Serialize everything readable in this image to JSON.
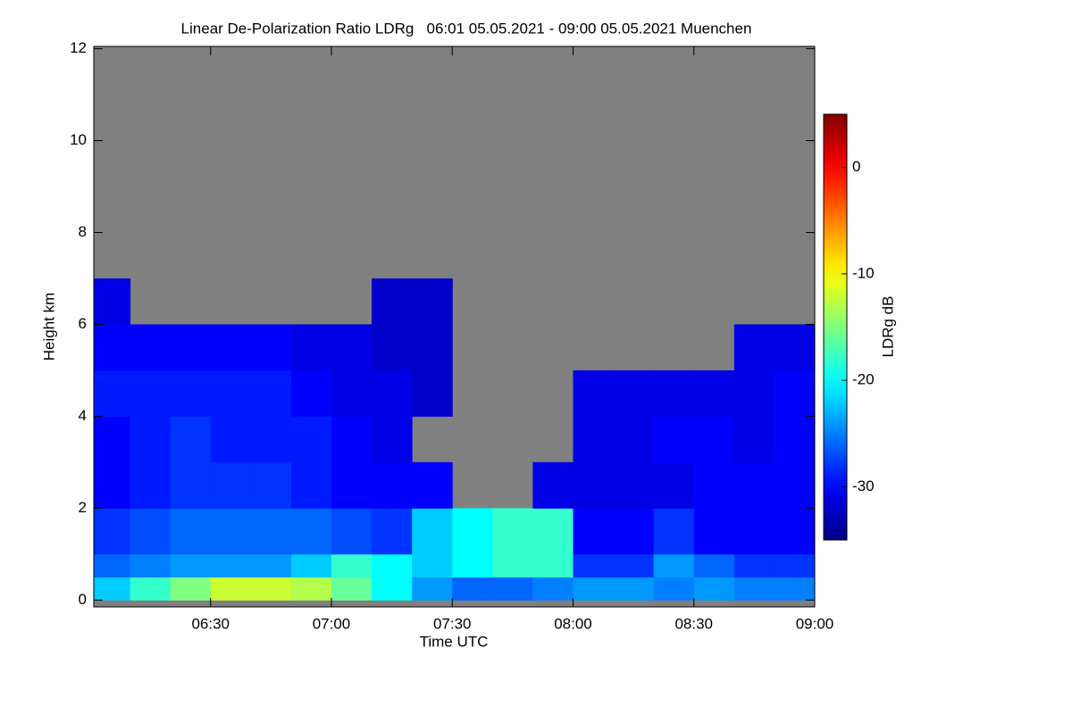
{
  "chart_data": {
    "type": "heatmap",
    "title": "Linear De-Polarization Ratio LDRg   06:01 05.05.2021 - 09:00 05.05.2021 Muenchen",
    "x_label": "Time UTC",
    "y_label": "Height km",
    "colorbar_label": "LDRg dB",
    "colormap": "jet",
    "nan_color": "#808080",
    "xlim": [
      1,
      180
    ],
    "xticks": [
      {
        "value": 30,
        "label": "06:30"
      },
      {
        "value": 60,
        "label": "07:00"
      },
      {
        "value": 90,
        "label": "07:30"
      },
      {
        "value": 120,
        "label": "08:00"
      },
      {
        "value": 150,
        "label": "08:30"
      },
      {
        "value": 180,
        "label": "09:00"
      }
    ],
    "ylim": [
      -0.15,
      12.05
    ],
    "yticks": [
      0,
      2,
      4,
      6,
      8,
      10,
      12
    ],
    "zlim": [
      -35,
      5
    ],
    "zticks": [
      0,
      -10,
      -20,
      -30
    ],
    "xbins": [
      1,
      10,
      20,
      30,
      40,
      50,
      60,
      70,
      80,
      90,
      100,
      110,
      120,
      130,
      140,
      150,
      160,
      170,
      180
    ],
    "ybins": [
      0,
      0.5,
      1,
      2,
      3,
      4,
      5,
      6,
      7,
      12
    ],
    "z": [
      [
        -22,
        -18,
        -15,
        -12,
        -12,
        -13,
        -16,
        -20,
        -24,
        -26,
        -26,
        -25,
        -24,
        -24,
        -25,
        -24,
        -25,
        -25
      ],
      [
        -26,
        -25,
        -24,
        -24,
        -24,
        -22,
        -18,
        -20,
        -22,
        -20,
        -18,
        -18,
        -28,
        -28,
        -24,
        -26,
        -28,
        -28
      ],
      [
        -28,
        -27,
        -26,
        -26,
        -26,
        -26,
        -27,
        -28,
        -22,
        -20,
        -18,
        -18,
        -30,
        -30,
        -28,
        -30,
        -30,
        -30
      ],
      [
        -30,
        -29,
        -28,
        -28,
        -28,
        -29,
        -30,
        -30,
        -30,
        null,
        null,
        -31,
        -31,
        -31,
        -31,
        -30,
        -30,
        -30
      ],
      [
        -30,
        -29,
        -28,
        -29,
        -29,
        -29,
        -30,
        -31,
        null,
        null,
        null,
        null,
        -31,
        -31,
        -30,
        -30,
        -31,
        -30
      ],
      [
        -29,
        -29,
        -29,
        -29,
        -29,
        -30,
        -31,
        -31,
        -32,
        null,
        null,
        null,
        -31,
        -31,
        -31,
        -31,
        -31,
        -30
      ],
      [
        -30,
        -30,
        -30,
        -30,
        -30,
        -31,
        -31,
        -32,
        -32,
        null,
        null,
        null,
        null,
        null,
        null,
        null,
        -31,
        -31
      ],
      [
        -31,
        null,
        null,
        null,
        null,
        null,
        null,
        -32,
        -32,
        null,
        null,
        null,
        null,
        null,
        null,
        null,
        null,
        null
      ],
      [
        null,
        null,
        null,
        null,
        null,
        null,
        null,
        null,
        null,
        null,
        null,
        null,
        null,
        null,
        null,
        null,
        null,
        null
      ]
    ]
  }
}
